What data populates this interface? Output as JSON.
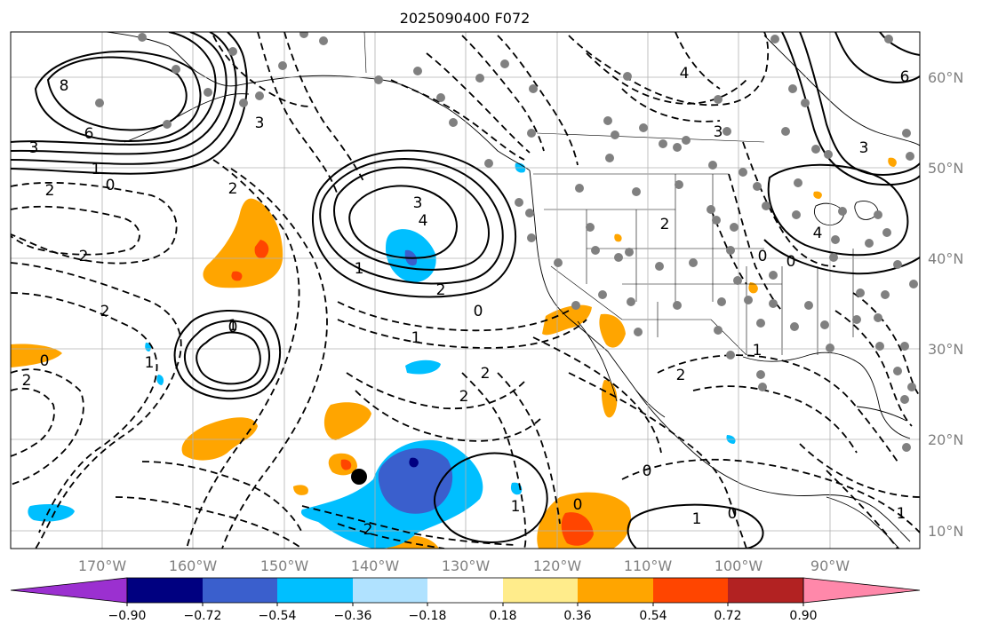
{
  "title": "2025090400 F072",
  "map": {
    "lon_ticks": [
      "170°W",
      "160°W",
      "150°W",
      "140°W",
      "130°W",
      "120°W",
      "110°W",
      "100°W",
      "90°W"
    ],
    "lat_ticks": [
      "60°N",
      "50°N",
      "40°N",
      "30°N",
      "20°N",
      "10°N"
    ]
  },
  "colorbar": {
    "tick_labels": [
      "−0.90",
      "−0.72",
      "−0.54",
      "−0.36",
      "−0.18",
      "0.18",
      "0.36",
      "0.54",
      "0.72",
      "0.90"
    ],
    "colors": [
      "#9b30d0",
      "#000080",
      "#3a5fcd",
      "#00bfff",
      "#b0e2ff",
      "#ffffff",
      "#ffec8b",
      "#ffa500",
      "#ff4500",
      "#b22222",
      "#ff88aa"
    ]
  },
  "contour_labels": [
    {
      "text": "8"
    },
    {
      "text": "6"
    },
    {
      "text": "3"
    },
    {
      "text": "1"
    },
    {
      "text": "0"
    },
    {
      "text": "2"
    },
    {
      "text": "3"
    },
    {
      "text": "4"
    },
    {
      "text": "3"
    },
    {
      "text": "1"
    },
    {
      "text": "2"
    },
    {
      "text": "0"
    },
    {
      "text": "2"
    },
    {
      "text": "2"
    },
    {
      "text": "0"
    },
    {
      "text": "2"
    },
    {
      "text": "1"
    },
    {
      "text": "2"
    },
    {
      "text": "2"
    },
    {
      "text": "1"
    },
    {
      "text": "0"
    },
    {
      "text": "2"
    },
    {
      "text": "1"
    },
    {
      "text": "0"
    },
    {
      "text": "1"
    },
    {
      "text": "0"
    },
    {
      "text": "0"
    },
    {
      "text": "1"
    },
    {
      "text": "2"
    },
    {
      "text": "3"
    },
    {
      "text": "6"
    },
    {
      "text": "4"
    },
    {
      "text": "3"
    },
    {
      "text": "0"
    },
    {
      "text": "0"
    },
    {
      "text": "1"
    },
    {
      "text": "2"
    },
    {
      "text": "1"
    },
    {
      "text": "4"
    },
    {
      "text": "2"
    }
  ]
}
